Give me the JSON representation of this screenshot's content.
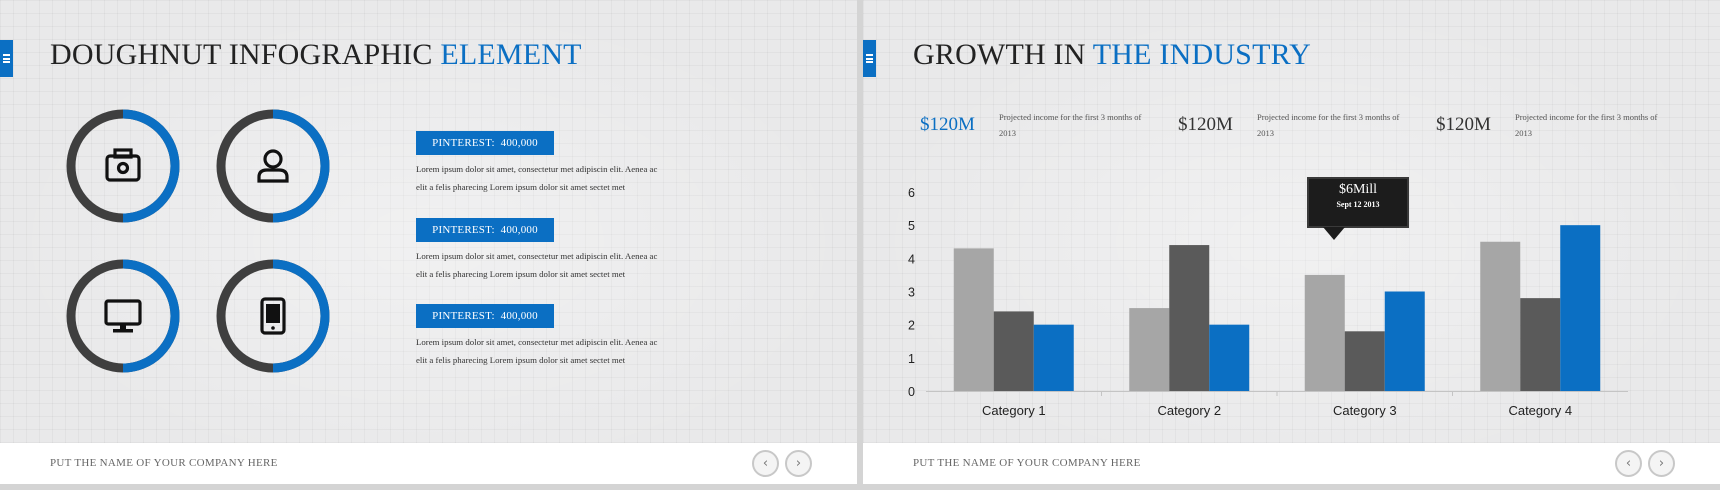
{
  "left_slide": {
    "title_main": "DOUGHNUT INFOGRAPHIC",
    "title_accent": "ELEMENT",
    "donuts": [
      {
        "icon": "camera-icon",
        "fraction": 0.5
      },
      {
        "icon": "user-icon",
        "fraction": 0.5
      },
      {
        "icon": "monitor-icon",
        "fraction": 0.5
      },
      {
        "icon": "tablet-icon",
        "fraction": 0.5
      }
    ],
    "info_blocks": [
      {
        "badge_label": "PINTEREST:",
        "badge_value": "400,000",
        "text": "Lorem ipsum dolor sit amet, consectetur met adipiscin elit. Aenea ac elit a felis pharecing Lorem ipsum dolor sit amet sectet met"
      },
      {
        "badge_label": "PINTEREST:",
        "badge_value": "400,000",
        "text": "Lorem ipsum dolor sit amet, consectetur met adipiscin elit. Aenea ac elit a felis pharecing Lorem ipsum dolor sit amet sectet met"
      },
      {
        "badge_label": "PINTEREST:",
        "badge_value": "400,000",
        "text": "Lorem ipsum dolor sit amet, consectetur met adipiscin elit. Aenea ac elit a felis pharecing Lorem ipsum dolor sit amet sectet met"
      }
    ],
    "footer_text": "PUT THE NAME OF YOUR COMPANY HERE"
  },
  "right_slide": {
    "title_main": "GROWTH IN",
    "title_accent": "THE INDUSTRY",
    "stats": [
      {
        "value": "$120M",
        "text": "Projected income for the first 3 months of 2013",
        "highlight": true
      },
      {
        "value": "$120M",
        "text": "Projected income for the first 3 months of 2013",
        "highlight": false
      },
      {
        "value": "$120M",
        "text": "Projected income for the first 3 months of 2013",
        "highlight": false
      }
    ],
    "tooltip": {
      "value": "$6Mill",
      "date": "Sept 12 2013"
    },
    "footer_text": "PUT THE NAME OF YOUR COMPANY HERE"
  },
  "nav": {
    "prev": "‹",
    "next": "›"
  },
  "colors": {
    "accent": "#0b6fc3",
    "series_light": "#a6a6a6",
    "series_dark": "#5a5a5a",
    "series_blue": "#0b6fc3",
    "donut_dark": "#3f3f3f"
  },
  "chart_data": {
    "type": "bar",
    "categories": [
      "Category 1",
      "Category 2",
      "Category 3",
      "Category 4"
    ],
    "series": [
      {
        "values": [
          4.3,
          2.5,
          3.5,
          4.5
        ],
        "color": "#a6a6a6"
      },
      {
        "values": [
          2.4,
          4.4,
          1.8,
          2.8
        ],
        "color": "#5a5a5a"
      },
      {
        "values": [
          2.0,
          2.0,
          3.0,
          5.0
        ],
        "color": "#0b6fc3"
      }
    ],
    "yticks": [
      0,
      1,
      2,
      3,
      4,
      5,
      6
    ],
    "ylim": [
      0,
      6
    ],
    "grid": false,
    "legend": "none"
  }
}
